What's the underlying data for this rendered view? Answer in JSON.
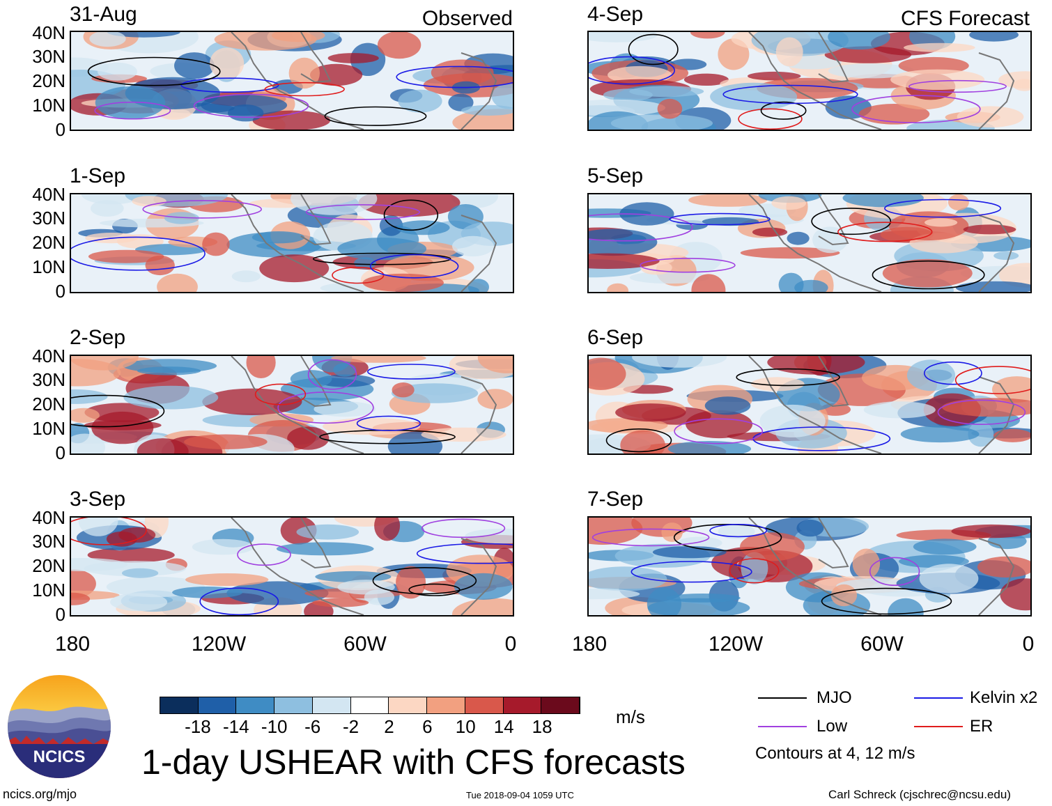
{
  "title": "1-day USHEAR with CFS forecasts",
  "observed_label": "Observed",
  "forecast_label": "CFS Forecast",
  "panels": [
    {
      "date": "31-Aug",
      "kind": "observed"
    },
    {
      "date": "1-Sep",
      "kind": "observed"
    },
    {
      "date": "2-Sep",
      "kind": "observed"
    },
    {
      "date": "3-Sep",
      "kind": "observed"
    },
    {
      "date": "4-Sep",
      "kind": "forecast"
    },
    {
      "date": "5-Sep",
      "kind": "forecast"
    },
    {
      "date": "6-Sep",
      "kind": "forecast"
    },
    {
      "date": "7-Sep",
      "kind": "forecast"
    }
  ],
  "y_ticks": [
    "40N",
    "30N",
    "20N",
    "10N",
    "0"
  ],
  "x_ticks": [
    "180",
    "120W",
    "60W",
    "0"
  ],
  "colorbar": {
    "ticks": [
      "-18",
      "-14",
      "-10",
      "-6",
      "-2",
      "2",
      "6",
      "10",
      "14",
      "18"
    ],
    "colors": [
      "#0b2e5c",
      "#1f5fa8",
      "#3f8cc4",
      "#8ebfe0",
      "#d3e6f2",
      "#ffffff",
      "#fcd7c3",
      "#f2a080",
      "#d9584b",
      "#a61a2b",
      "#6b0a1c"
    ],
    "units": "m/s"
  },
  "legend": {
    "items": [
      {
        "label": "MJO",
        "color": "#000000"
      },
      {
        "label": "Kelvin x2",
        "color": "#1a1ae6"
      },
      {
        "label": "Low",
        "color": "#a040e0"
      },
      {
        "label": "ER",
        "color": "#e01c1c"
      }
    ],
    "note": "Contours at 4, 12 m/s"
  },
  "logo": {
    "text": "NCICS"
  },
  "footer": {
    "left": "ncics.org/mjo",
    "center": "Tue 2018-09-04 1059 UTC",
    "right": "Carl Schreck (cjschrec@ncsu.edu)"
  },
  "map_colors": {
    "land_outline": "#777777",
    "deep_blue": "#1f5fa8",
    "mid_blue": "#3f8cc4",
    "light_blue": "#8ebfe0",
    "pale_blue": "#d3e6f2",
    "pale_red": "#fcd7c3",
    "light_red": "#f2a080",
    "mid_red": "#d9584b",
    "dark_red": "#a61a2b"
  }
}
